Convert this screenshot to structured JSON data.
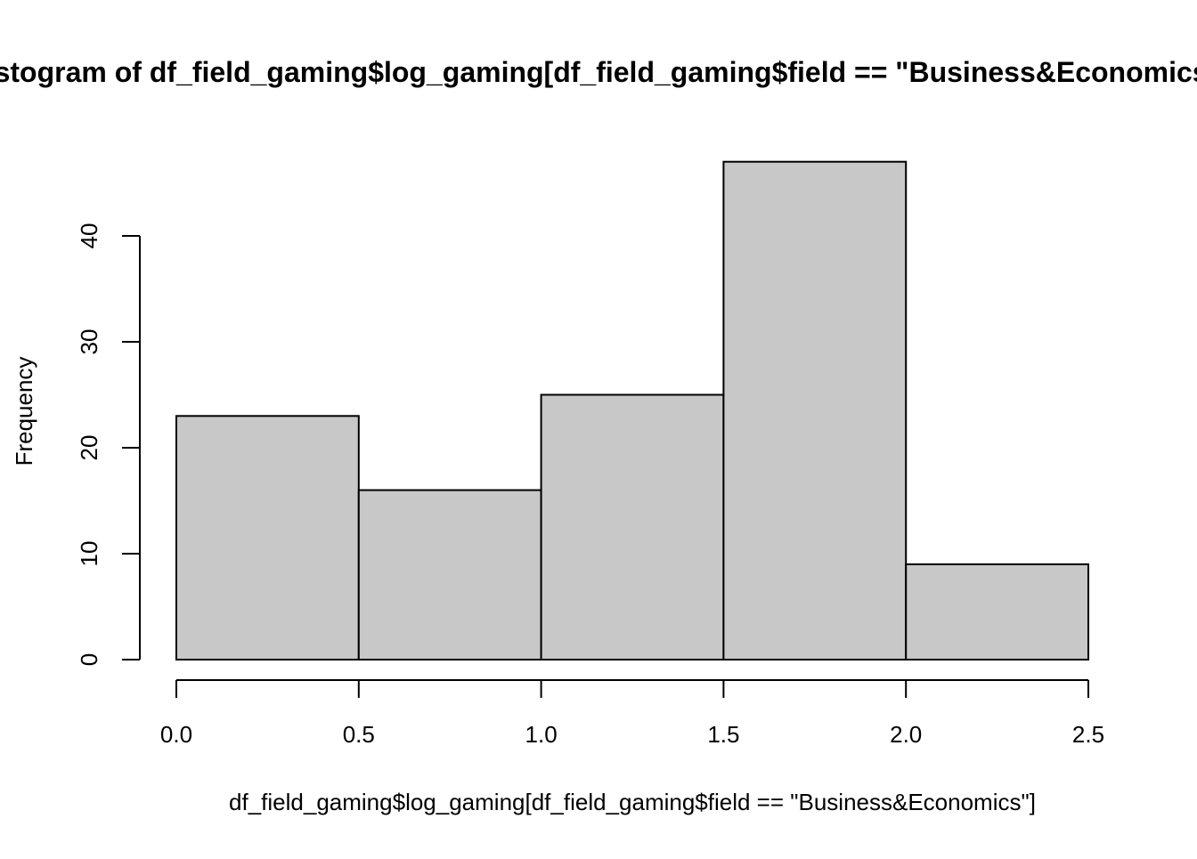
{
  "chart_data": {
    "type": "bar",
    "subtype": "histogram",
    "title": "Histogram of df_field_gaming$log_gaming[df_field_gaming$field == \"Business&Economics\"]",
    "xlabel": "df_field_gaming$log_gaming[df_field_gaming$field == \"Business&Economics\"]",
    "ylabel": "Frequency",
    "bins": [
      {
        "start": 0.0,
        "end": 0.5,
        "value": 23
      },
      {
        "start": 0.5,
        "end": 1.0,
        "value": 16
      },
      {
        "start": 1.0,
        "end": 1.5,
        "value": 25
      },
      {
        "start": 1.5,
        "end": 2.0,
        "value": 47
      },
      {
        "start": 2.0,
        "end": 2.5,
        "value": 9
      }
    ],
    "xlim": [
      0.0,
      2.5
    ],
    "ylim": [
      0,
      47
    ],
    "x_ticks": [
      "0.0",
      "0.5",
      "1.0",
      "1.5",
      "2.0",
      "2.5"
    ],
    "y_ticks": [
      "0",
      "10",
      "20",
      "30",
      "40"
    ],
    "grid": false,
    "bar_fill": "#c8c8c8",
    "bar_stroke": "#000000"
  }
}
